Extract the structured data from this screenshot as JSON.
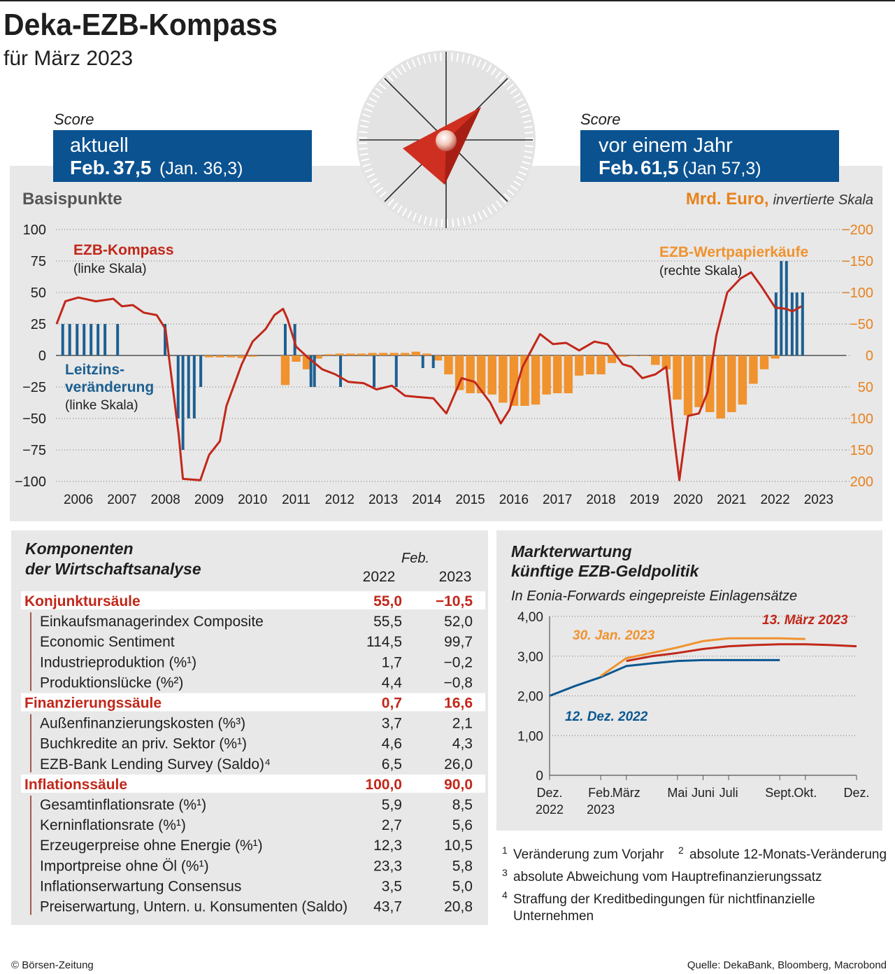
{
  "header": {
    "title": "Deka-EZB-Kompass",
    "subtitle": "für März 2023"
  },
  "scores": [
    {
      "label": "Score",
      "heading": "aktuell",
      "month": "Feb.",
      "value": "37,5",
      "previous": "(Jan. 36,3)"
    },
    {
      "label": "Score",
      "heading": "vor einem Jahr",
      "month": "Feb.",
      "value": "61,5",
      "previous": "(Jan 57,3)"
    }
  ],
  "chart_data": [
    {
      "type": "combo",
      "ylabel": "Basispunkte",
      "y2label": "Mrd. Euro,",
      "y2label_note": "invertierte Skala",
      "xlim": [
        2006,
        2024
      ],
      "xticks": [
        2006,
        2007,
        2008,
        2009,
        2010,
        2011,
        2012,
        2013,
        2014,
        2015,
        2016,
        2017,
        2018,
        2019,
        2020,
        2021,
        2022,
        2023
      ],
      "ylim": [
        -100,
        100
      ],
      "yticks": [
        {
          "value": -100,
          "label": "−100"
        },
        {
          "value": -75,
          "label": "−75"
        },
        {
          "value": -50,
          "label": "−50"
        },
        {
          "value": -25,
          "label": "−25"
        },
        0,
        25,
        50,
        75,
        100
      ],
      "y2lim": [
        200,
        -200
      ],
      "y2ticks": [
        {
          "value": -200,
          "label": "−200"
        },
        {
          "value": -150,
          "label": "−150"
        },
        {
          "value": -100,
          "label": "−100"
        },
        {
          "value": -50,
          "label": "−50"
        },
        0,
        50,
        100,
        150,
        200
      ],
      "grid": true,
      "series": [
        {
          "name": "EZB-Kompass",
          "note": "(linke Skala)",
          "type": "line",
          "color": "#c1271a",
          "x": [
            2006.0,
            2006.2,
            2006.5,
            2006.9,
            2007.3,
            2007.5,
            2007.75,
            2008.0,
            2008.3,
            2008.5,
            2008.6,
            2008.8,
            2008.9,
            2009.3,
            2009.5,
            2009.75,
            2009.9,
            2010.25,
            2010.5,
            2010.8,
            2011.0,
            2011.2,
            2011.3,
            2011.5,
            2011.75,
            2012.1,
            2012.4,
            2012.7,
            2013.05,
            2013.35,
            2013.7,
            2014.0,
            2014.3,
            2014.65,
            2014.95,
            2015.1,
            2015.3,
            2015.6,
            2015.95,
            2016.2,
            2016.4,
            2016.7,
            2017.1,
            2017.4,
            2017.7,
            2018.0,
            2018.35,
            2018.65,
            2019.0,
            2019.2,
            2019.45,
            2019.75,
            2020.0,
            2020.15,
            2020.3,
            2020.5,
            2020.75,
            2020.95,
            2021.15,
            2021.4,
            2021.7,
            2021.95,
            2022.2,
            2022.5,
            2022.75,
            2022.9,
            2023.1
          ],
          "values": [
            25,
            43,
            46,
            43,
            45,
            39,
            40,
            34,
            32,
            21,
            -7,
            -62,
            -98,
            -99,
            -79,
            -68,
            -40,
            -7,
            11,
            21,
            32,
            37,
            29,
            7,
            -1,
            -11,
            -15,
            -21,
            -22,
            -27,
            -24,
            -32,
            -33,
            -34,
            -46,
            -34,
            -18,
            -21,
            -37,
            -54,
            -43,
            -9,
            17,
            9,
            10,
            4,
            11,
            9,
            -7,
            -9,
            -18,
            -15,
            -9,
            -57,
            -99,
            -48,
            -46,
            -29,
            16,
            50,
            61,
            66,
            54,
            38,
            37,
            35,
            39
          ]
        },
        {
          "name": "Leitzins-\nveränderung",
          "note": "(linke Skala)",
          "type": "bar",
          "color": "#1d5f91",
          "x": [
            2006.14,
            2006.3,
            2006.47,
            2006.63,
            2006.79,
            2006.95,
            2007.11,
            2007.4,
            2008.49,
            2008.79,
            2008.9,
            2009.03,
            2009.16,
            2009.31,
            2011.25,
            2011.47,
            2011.84,
            2011.92,
            2012.52,
            2013.29,
            2013.8,
            2014.41,
            2014.65,
            2022.52,
            2022.64,
            2022.76,
            2022.89,
            2023.0,
            2023.13
          ],
          "values": [
            25,
            25,
            25,
            25,
            25,
            25,
            25,
            25,
            25,
            -50,
            -75,
            -50,
            -50,
            -25,
            25,
            25,
            -25,
            -25,
            -25,
            -25,
            -25,
            -10,
            -10,
            50,
            75,
            75,
            50,
            50,
            50
          ]
        },
        {
          "name": "EZB-Wertpapierkäufe",
          "note": "(rechte Skala)",
          "type": "bar",
          "axis": "y2",
          "color": "#f0922e",
          "x": [
            2009.5,
            2009.75,
            2010.0,
            2010.25,
            2010.5,
            2011.25,
            2011.5,
            2011.75,
            2012.0,
            2012.25,
            2012.5,
            2012.75,
            2013.0,
            2013.25,
            2013.5,
            2013.75,
            2014.0,
            2014.25,
            2014.5,
            2014.75,
            2015.0,
            2015.25,
            2015.5,
            2015.75,
            2016.0,
            2016.25,
            2016.5,
            2016.75,
            2017.0,
            2017.25,
            2017.5,
            2017.75,
            2018.0,
            2018.25,
            2018.5,
            2018.75,
            2019.0,
            2019.25,
            2019.5,
            2019.75,
            2020.0,
            2020.25,
            2020.5,
            2020.75,
            2021.0,
            2021.25,
            2021.5,
            2021.75,
            2022.0,
            2022.25,
            2022.5
          ],
          "values": [
            3,
            3,
            3,
            4,
            2,
            47,
            10,
            22,
            5,
            -2,
            -3,
            -3,
            -3,
            -4,
            -4,
            -4,
            -4,
            -6,
            -3,
            8,
            30,
            55,
            60,
            60,
            62,
            75,
            80,
            80,
            78,
            62,
            60,
            60,
            32,
            30,
            30,
            12,
            2,
            1,
            1,
            15,
            22,
            70,
            95,
            82,
            90,
            100,
            90,
            78,
            45,
            22,
            5
          ]
        }
      ]
    },
    {
      "type": "line",
      "title": "Markterwartung\nkünftige EZB-Geldpolitik",
      "subtitle": "In Eonia-Forwards eingepreiste Einlagensätze",
      "categories": [
        "Dez.\n2022",
        null,
        "Feb.\n2023",
        "März",
        null,
        "Mai",
        "Juni",
        "Juli",
        null,
        "Sept.",
        "Okt.",
        null,
        "Dez."
      ],
      "ylim": [
        0,
        4
      ],
      "yticks": [
        0,
        {
          "value": 1,
          "label": "1,00"
        },
        {
          "value": 2,
          "label": "2,00"
        },
        {
          "value": 3,
          "label": "3,00"
        },
        {
          "value": 4,
          "label": "4,00"
        }
      ],
      "grid": true,
      "series": [
        {
          "name": "12. Dez. 2022",
          "color": "#0b5790",
          "values": [
            2.0,
            2.25,
            2.47,
            2.75,
            2.82,
            2.88,
            2.9,
            2.9,
            2.9,
            2.9,
            null,
            null,
            null
          ]
        },
        {
          "name": "30. Jan. 2023",
          "color": "#f0922e",
          "values": [
            null,
            null,
            2.5,
            2.95,
            3.08,
            3.22,
            3.38,
            3.45,
            3.45,
            3.45,
            3.43,
            null,
            null
          ]
        },
        {
          "name": "13. März 2023",
          "color": "#c1271a",
          "values": [
            null,
            null,
            null,
            2.88,
            3.0,
            3.08,
            3.18,
            3.25,
            3.28,
            3.3,
            3.3,
            3.28,
            3.25
          ]
        }
      ]
    }
  ],
  "table": {
    "title": "Komponenten\nder Wirtschaftsanalyse",
    "column_group": "Feb.",
    "columns": [
      "2022",
      "2023"
    ],
    "groups": [
      {
        "name": "Konjunktursäule",
        "values": [
          "55,0",
          "−10,5"
        ],
        "rows": [
          [
            "Einkaufsmanagerindex Composite",
            "55,5",
            "52,0"
          ],
          [
            "Economic Sentiment",
            "114,5",
            "99,7"
          ],
          [
            "Industrieproduktion (%¹)",
            "1,7",
            "−0,2"
          ],
          [
            "Produktionslücke (%²)",
            "4,4",
            "−0,8"
          ]
        ]
      },
      {
        "name": "Finanzierungssäule",
        "values": [
          "0,7",
          "16,6"
        ],
        "rows": [
          [
            "Außenfinanzierungskosten (%³)",
            "3,7",
            "2,1"
          ],
          [
            "Buchkredite an priv. Sektor (%¹)",
            "4,6",
            "4,3"
          ],
          [
            "EZB-Bank Lending Survey (Saldo)⁴",
            "6,5",
            "26,0"
          ]
        ]
      },
      {
        "name": "Inflationssäule",
        "values": [
          "100,0",
          "90,0"
        ],
        "rows": [
          [
            "Gesamtinflationsrate (%¹)",
            "5,9",
            "8,5"
          ],
          [
            "Kerninflationsrate (%¹)",
            "2,7",
            "5,6"
          ],
          [
            "Erzeugerpreise ohne Energie (%¹)",
            "12,3",
            "10,5"
          ],
          [
            "Importpreise ohne Öl (%¹)",
            "23,3",
            "5,8"
          ],
          [
            "Inflationserwartung Consensus",
            "3,5",
            "5,0"
          ],
          [
            "Preiserwartung, Untern. u. Konsumenten (Saldo)",
            "43,7",
            "20,8"
          ]
        ]
      }
    ]
  },
  "footnotes": [
    {
      "mark": "1",
      "text": "Veränderung zum Vorjahr"
    },
    {
      "mark": "2",
      "text": "absolute 12-Monats-Veränderung"
    },
    {
      "mark": "3",
      "text": "absolute Abweichung vom Hauptrefinanzierungssatz"
    },
    {
      "mark": "4",
      "text": "Straffung der Kreditbedingungen für nichtfinanzielle\nUnternehmen"
    }
  ],
  "footer": {
    "copyright": "© Börsen-Zeitung",
    "source": "Quelle: DekaBank, Bloomberg, Macrobond"
  }
}
